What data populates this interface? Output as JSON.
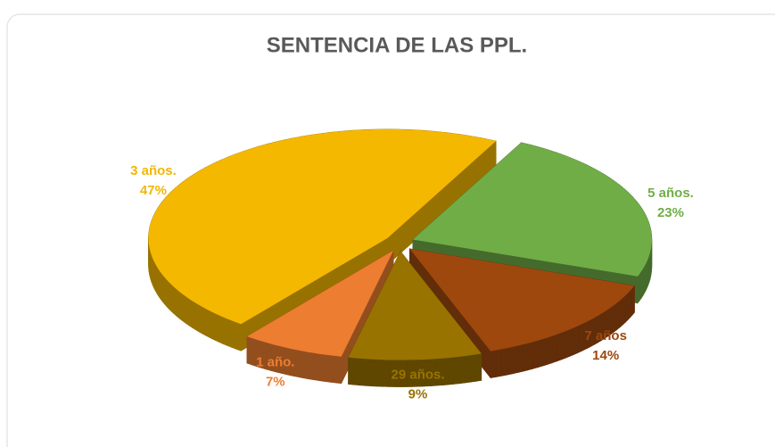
{
  "chart_data": {
    "type": "pie3d",
    "title": "SENTENCIA DE LAS PPL.",
    "categories": [
      "5 años.",
      "7 años",
      "29 años.",
      "1 año.",
      "3 años."
    ],
    "values": [
      23,
      14,
      9,
      7,
      47
    ],
    "value_labels": [
      "23%",
      "14%",
      "9%",
      "7%",
      "47%"
    ],
    "colors": [
      "#70ad47",
      "#9e480e",
      "#997300",
      "#ed7d31",
      "#f5b800"
    ],
    "label_colors": [
      "#70ad47",
      "#9e480e",
      "#997300",
      "#ed7d31",
      "#f2b705"
    ]
  }
}
